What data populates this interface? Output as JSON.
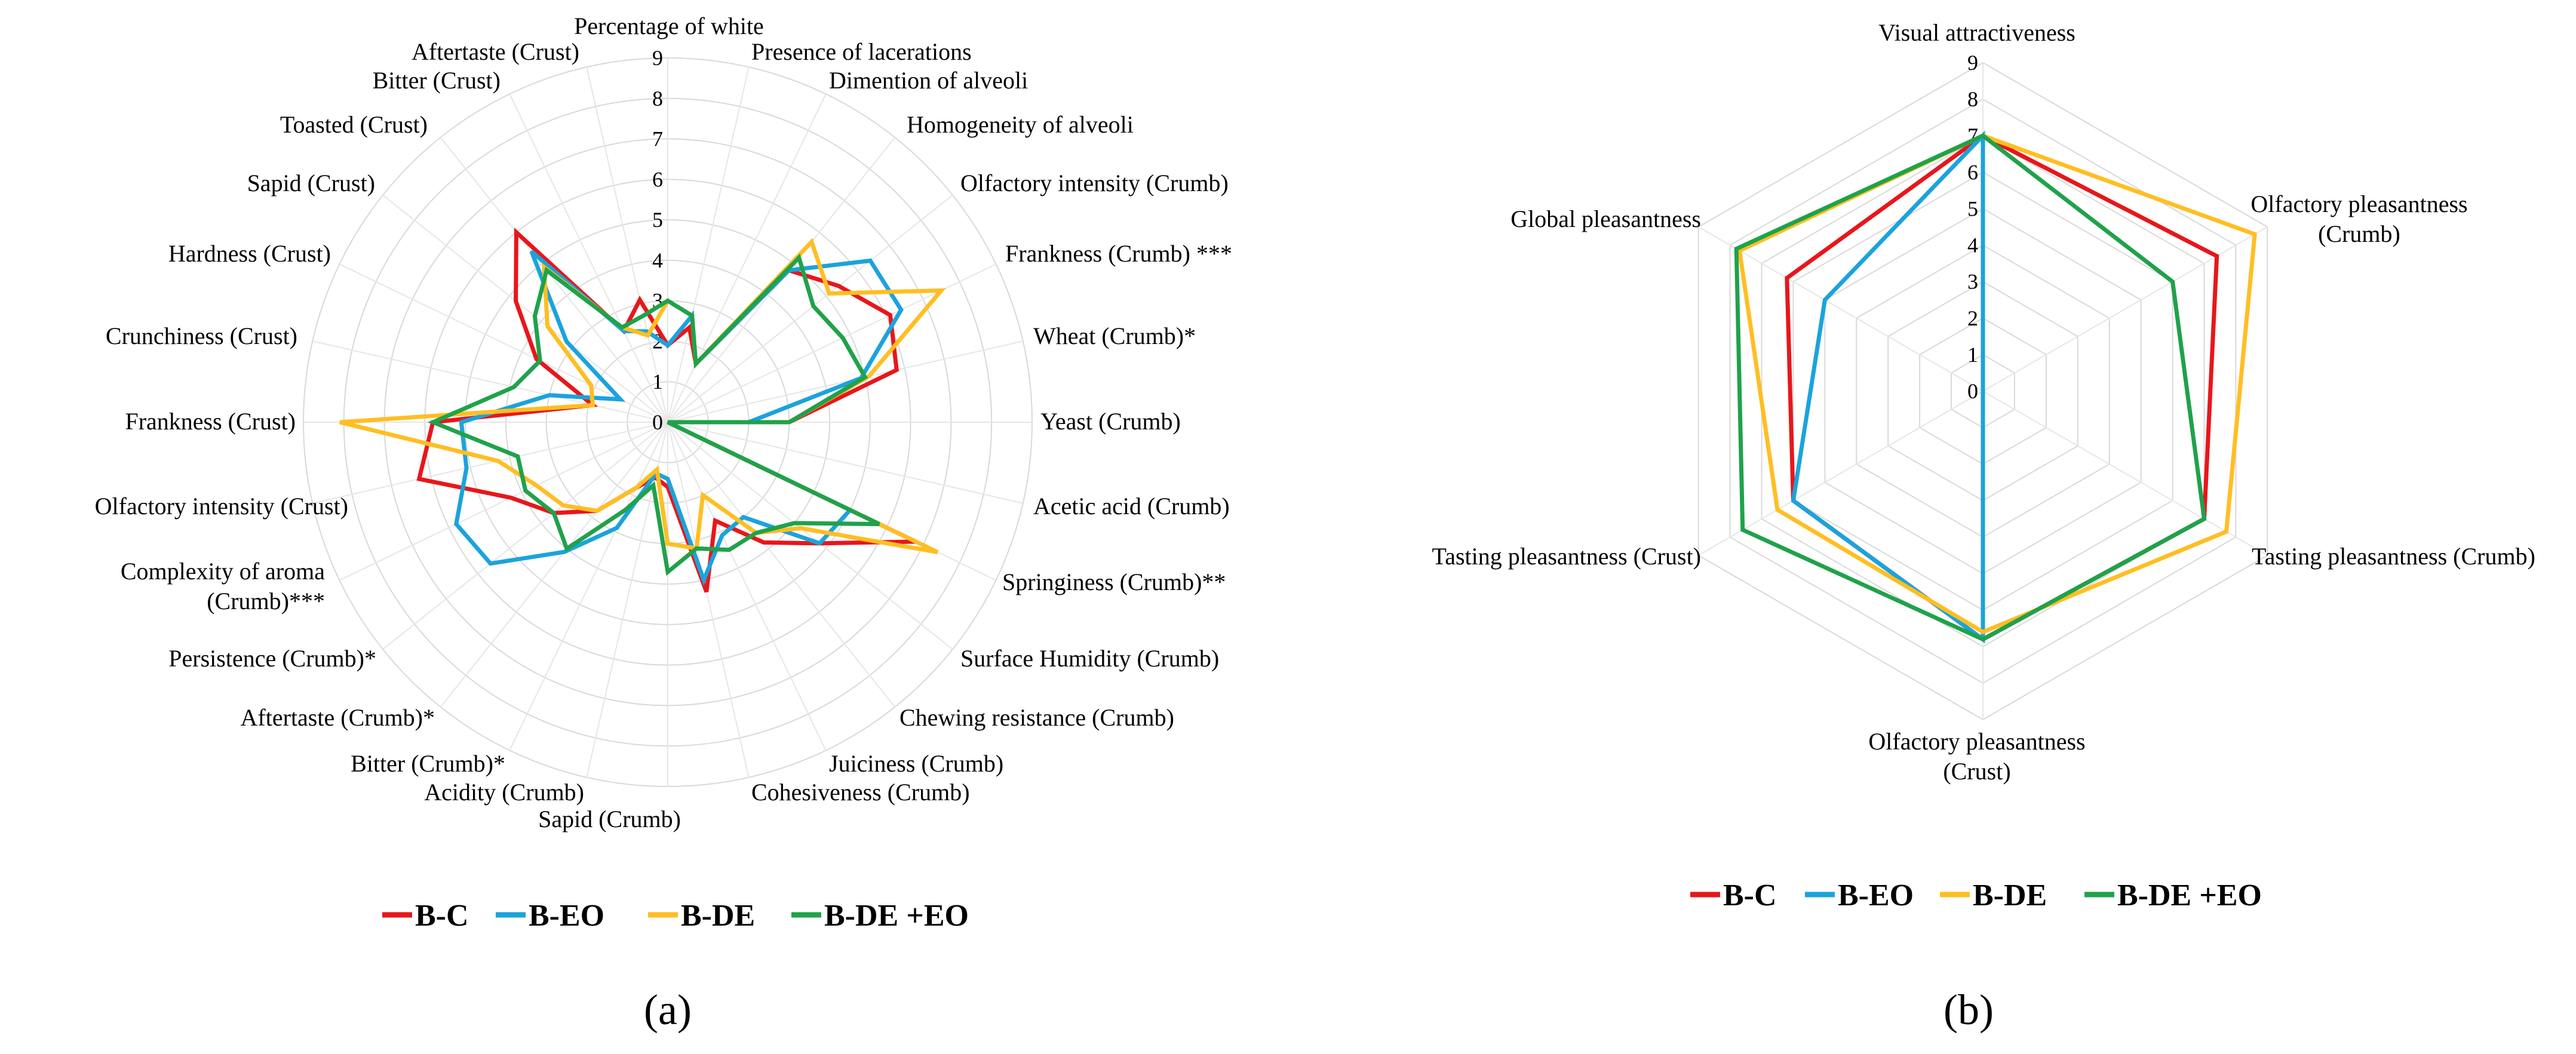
{
  "chart_data": [
    {
      "type": "radar",
      "panel_label": "(a)",
      "rmin": 0,
      "rmax": 9,
      "ticks": [
        "0",
        "1",
        "2",
        "3",
        "4",
        "5",
        "6",
        "7",
        "8",
        "9"
      ],
      "grid": "circular",
      "legend_position": "bottom",
      "categories": [
        "Percentage of white",
        "Presence of lacerations",
        "Dimention of alveoli",
        "Homogeneity of alveoli",
        "Olfactory intensity (Crumb)",
        "Frankness (Crumb) ***",
        "Wheat (Crumb)*",
        "Yeast (Crumb)",
        "Acetic acid (Crumb)",
        "Springiness (Crumb)**",
        "Surface Humidity (Crumb)",
        "Chewing resistance (Crumb)",
        "Juiciness (Crumb)",
        "Cohesiveness (Crumb)",
        "Sapid (Crumb)",
        "Acidity (Crumb)",
        "Bitter (Crumb)*",
        "Aftertaste (Crumb)*",
        "Persistence (Crumb)*",
        "Complexity of aroma (Crumb)***",
        "Olfactory intensity (Crust)",
        "Frankness (Crust)",
        "Crunchiness (Crust)",
        "Hardness (Crust)",
        "Sapid (Crust)",
        "Toasted (Crust)",
        "Bitter (Crust)",
        "Aftertaste (Crust)"
      ],
      "series": [
        {
          "name": "B-C",
          "color": "#e8161b",
          "values": [
            1.9,
            2.4,
            1.6,
            4.8,
            5.4,
            6.1,
            5.8,
            3.0,
            0.0,
            6.8,
            4.8,
            3.8,
            2.7,
            4.3,
            1.6,
            1.4,
            1.8,
            2.8,
            3.6,
            4.3,
            6.3,
            5.8,
            1.9,
            3.6,
            4.8,
            6.0,
            2.5,
            3.1
          ]
        },
        {
          "name": "B-EO",
          "color": "#1ba3dc",
          "values": [
            1.9,
            2.7,
            1.6,
            4.8,
            6.4,
            6.4,
            4.9,
            2.0,
            0.0,
            5.0,
            4.8,
            3.0,
            3.1,
            4.0,
            1.4,
            1.3,
            2.9,
            4.1,
            5.6,
            5.8,
            5.1,
            5.1,
            3.0,
            1.3,
            3.2,
            5.4,
            2.5,
            2.3
          ]
        },
        {
          "name": "B-DE",
          "color": "#ffbe22",
          "values": [
            3.0,
            2.7,
            1.6,
            5.7,
            5.1,
            7.5,
            5.1,
            3.0,
            0.0,
            7.4,
            4.2,
            3.5,
            2.0,
            3.2,
            3.0,
            1.2,
            1.8,
            2.8,
            3.3,
            3.6,
            4.3,
            8.1,
            1.9,
            2.1,
            3.8,
            4.9,
            2.6,
            2.2
          ]
        },
        {
          "name": "B-DE +EO",
          "color": "#1fa24a",
          "values": [
            3.0,
            2.7,
            1.6,
            5.2,
            4.6,
            4.8,
            5.0,
            3.0,
            0.0,
            5.8,
            4.0,
            3.5,
            3.5,
            3.2,
            3.7,
            1.6,
            2.4,
            4.0,
            3.6,
            3.9,
            3.8,
            5.8,
            3.9,
            3.5,
            4.2,
            4.8,
            2.6,
            2.7
          ]
        }
      ]
    },
    {
      "type": "radar",
      "panel_label": "(b)",
      "rmin": 0,
      "rmax": 9,
      "ticks": [
        "0",
        "1",
        "2",
        "3",
        "4",
        "5",
        "6",
        "7",
        "8",
        "9"
      ],
      "grid": "hexagonal",
      "legend_position": "bottom",
      "categories": [
        "Visual attractiveness",
        "Olfactory pleasantness (Crumb)",
        "Tasting pleasantness (Crumb)",
        "Olfactory pleasantness (Crust)",
        "Tasting pleasantness (Crust)",
        "Global pleasantness"
      ],
      "series": [
        {
          "name": "B-C",
          "color": "#e8161b",
          "values": [
            7.0,
            7.4,
            7.0,
            6.8,
            6.0,
            6.2
          ]
        },
        {
          "name": "B-EO",
          "color": "#1ba3dc",
          "values": [
            7.0,
            0,
            0,
            6.8,
            6.0,
            5.0
          ]
        },
        {
          "name": "B-DE",
          "color": "#ffbe22",
          "values": [
            7.0,
            8.6,
            7.7,
            6.6,
            6.5,
            7.7
          ]
        },
        {
          "name": "B-DE +EO",
          "color": "#1fa24a",
          "values": [
            7.0,
            6.0,
            7.0,
            6.8,
            7.6,
            7.8
          ]
        }
      ]
    }
  ],
  "panel_a": {
    "labels": [
      "Percentage of white",
      "Presence of lacerations",
      "Dimention of alveoli",
      "Homogeneity of alveoli",
      "Olfactory intensity (Crumb)",
      "Frankness (Crumb) ***",
      "Wheat (Crumb)*",
      "Yeast (Crumb)",
      "Acetic acid (Crumb)",
      "Springiness (Crumb)**",
      "Surface Humidity (Crumb)",
      "Chewing resistance (Crumb)",
      "Juiciness (Crumb)",
      "Cohesiveness (Crumb)",
      "Sapid (Crumb)",
      "Acidity (Crumb)",
      "Bitter (Crumb)*",
      "Aftertaste (Crumb)*",
      "Persistence (Crumb)*",
      "Complexity of aroma",
      "(Crumb)***",
      "Olfactory intensity (Crust)",
      "Frankness (Crust)",
      "Crunchiness (Crust)",
      "Hardness (Crust)",
      "Sapid (Crust)",
      "Toasted (Crust)",
      "Bitter (Crust)",
      "Aftertaste (Crust)"
    ]
  },
  "panel_b": {
    "labels": [
      "Visual attractiveness",
      "Olfactory pleasantness",
      "(Crumb)",
      "Tasting pleasantness (Crumb)",
      "Olfactory pleasantness",
      "(Crust)",
      "Tasting pleasantness (Crust)",
      "Global pleasantness"
    ]
  },
  "legend": [
    "B-C",
    "B-EO",
    "B-DE",
    "B-DE +EO"
  ],
  "legend_colors": [
    "#e8161b",
    "#1ba3dc",
    "#ffbe22",
    "#1fa24a"
  ],
  "panel_labels": [
    "(a)",
    "(b)"
  ]
}
